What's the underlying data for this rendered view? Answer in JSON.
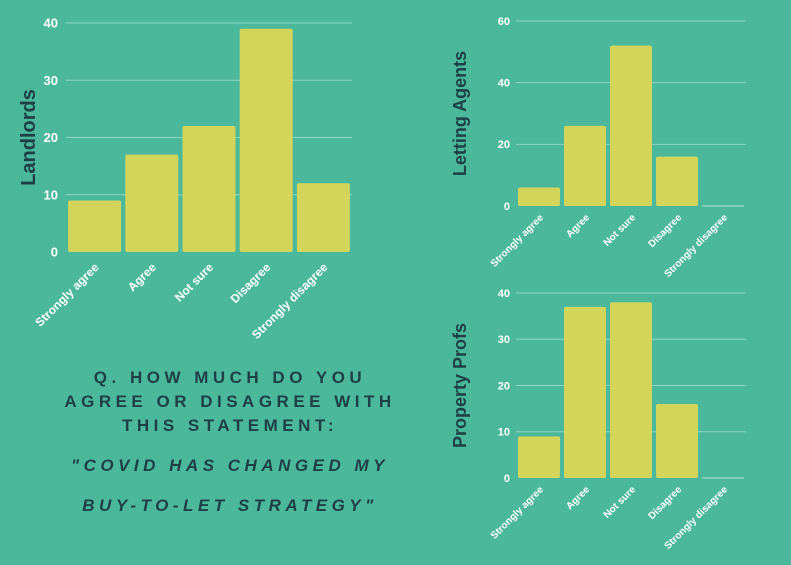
{
  "question": {
    "lines": [
      "Q. HOW MUCH DO YOU",
      "AGREE OR DISAGREE WITH",
      "THIS STATEMENT:"
    ],
    "quote_lines": [
      "\"COVID HAS CHANGED MY",
      "BUY-TO-LET STRATEGY\""
    ]
  },
  "chart_data": [
    {
      "type": "bar",
      "ylabel": "Landlords",
      "categories": [
        "Strongly agree",
        "Agree",
        "Not sure",
        "Disagree",
        "Strongly disagree"
      ],
      "values": [
        9,
        17,
        22,
        39,
        12
      ],
      "ylim": [
        0,
        40
      ],
      "yticks": [
        0,
        10,
        20,
        30,
        40
      ],
      "grid": true
    },
    {
      "type": "bar",
      "ylabel": "Letting Agents",
      "categories": [
        "Strongly agree",
        "Agree",
        "Not sure",
        "Disagree",
        "Strongly disagree"
      ],
      "values": [
        6,
        26,
        52,
        16,
        0
      ],
      "ylim": [
        0,
        60
      ],
      "yticks": [
        0,
        20,
        40,
        60
      ],
      "grid": true
    },
    {
      "type": "bar",
      "ylabel": "Property Profs",
      "categories": [
        "Strongly agree",
        "Agree",
        "Not sure",
        "Disagree",
        "Strongly disagree"
      ],
      "values": [
        9,
        37,
        38,
        16,
        0
      ],
      "ylim": [
        0,
        40
      ],
      "yticks": [
        0,
        10,
        20,
        30,
        40
      ],
      "grid": true
    }
  ]
}
